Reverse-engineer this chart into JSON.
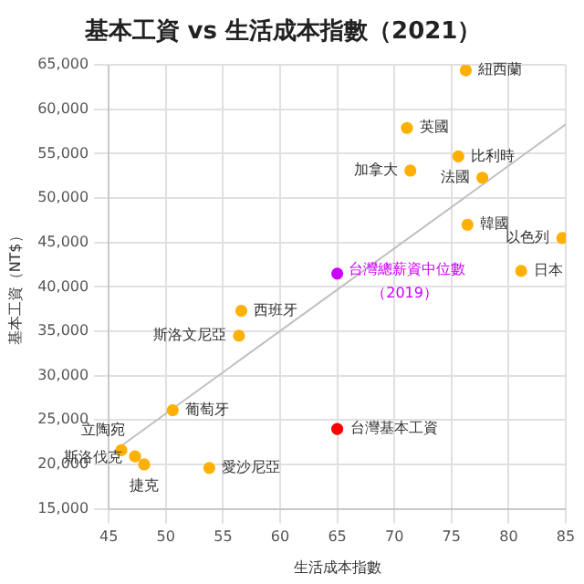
{
  "chart_data": {
    "type": "scatter",
    "title": "基本工資 vs 生活成本指數（2021）",
    "xlabel": "生活成本指數",
    "ylabel": "基本工資（NT$）",
    "x": [
      76.25,
      71.1,
      75.6,
      71.4,
      77.7,
      76.4,
      84.7,
      81.1,
      65,
      56.6,
      56.4,
      50.6,
      65,
      46.1,
      47.3,
      48.1,
      53.8
    ],
    "values": [
      64400,
      57900,
      54700,
      53100,
      52300,
      47000,
      45500,
      41800,
      41500,
      37300,
      34500,
      26100,
      24000,
      21600,
      20900,
      20000,
      19600
    ],
    "colors": [
      "#ffb000",
      "#ffb000",
      "#ffb000",
      "#ffb000",
      "#ffb000",
      "#ffb000",
      "#ffb000",
      "#ffb000",
      "#cc00ff",
      "#ffb000",
      "#ffb000",
      "#ffb000",
      "#ff0000",
      "#ffb000",
      "#ffb000",
      "#ffb000",
      "#ffb000"
    ],
    "series": [
      {
        "type": "line",
        "x": [
          46,
          85
        ],
        "values": [
          22000,
          58300
        ],
        "color": "#bfbfbf",
        "marker": "none"
      }
    ],
    "annotations": [
      {
        "text": "紐西蘭",
        "x": 76.25,
        "y": 64400
      },
      {
        "text": "英國",
        "x": 71.1,
        "y": 57900
      },
      {
        "text": "比利時",
        "x": 75.6,
        "y": 54700
      },
      {
        "text": "加拿大",
        "x": 71.4,
        "y": 53100
      },
      {
        "text": "法國",
        "x": 77.7,
        "y": 52300
      },
      {
        "text": "韓國",
        "x": 76.4,
        "y": 47000
      },
      {
        "text": "以色列",
        "x": 84.7,
        "y": 45500
      },
      {
        "text": "日本",
        "x": 81.1,
        "y": 41800
      },
      {
        "text": "台灣總薪資中位數",
        "x": 65,
        "y": 41500
      },
      {
        "text": "（2019）",
        "x": 65,
        "y": 41500
      },
      {
        "text": "西班牙",
        "x": 56.6,
        "y": 37300
      },
      {
        "text": "斯洛文尼亞",
        "x": 56.4,
        "y": 34500
      },
      {
        "text": "葡萄牙",
        "x": 50.6,
        "y": 26100
      },
      {
        "text": "台灣基本工資",
        "x": 65,
        "y": 24000
      },
      {
        "text": "立陶宛",
        "x": 46.1,
        "y": 21600
      },
      {
        "text": "斯洛伐克",
        "x": 47.3,
        "y": 20900
      },
      {
        "text": "捷克",
        "x": 48.1,
        "y": 20000
      },
      {
        "text": "愛沙尼亞",
        "x": 53.8,
        "y": 19600
      }
    ],
    "xlim": [
      45,
      85
    ],
    "xticks": [
      45,
      50,
      55,
      60,
      65,
      70,
      75,
      80,
      85
    ],
    "ylim": [
      15000,
      65000
    ],
    "yticks": [
      {
        "value": 15000,
        "label": "15,000"
      },
      {
        "value": 20000,
        "label": "20,000"
      },
      {
        "value": 25000,
        "label": "25,000"
      },
      {
        "value": 30000,
        "label": "30,000"
      },
      {
        "value": 35000,
        "label": "35,000"
      },
      {
        "value": 40000,
        "label": "40,000"
      },
      {
        "value": 45000,
        "label": "45,000"
      },
      {
        "value": 50000,
        "label": "50,000"
      },
      {
        "value": 55000,
        "label": "55,000"
      },
      {
        "value": 60000,
        "label": "60,000"
      },
      {
        "value": 65000,
        "label": "65,000"
      }
    ],
    "grid": true,
    "marker": "circle"
  }
}
